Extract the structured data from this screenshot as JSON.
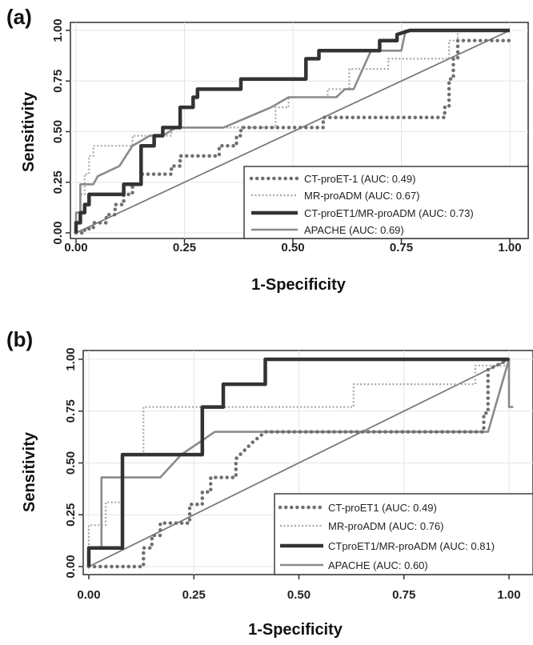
{
  "chart_data": [
    {
      "type": "line",
      "panel_label": "(a)",
      "title": "",
      "xlabel": "1-Specificity",
      "ylabel": "Sensitivity",
      "xlim": [
        0,
        1
      ],
      "ylim": [
        0,
        1
      ],
      "x_ticks": [
        "0.00",
        "0.25",
        "0.50",
        "0.75",
        "1.00"
      ],
      "y_ticks": [
        "0.00",
        "0.25",
        "0.50",
        "0.75",
        "1.00"
      ],
      "grid": true,
      "legend_position": "bottom-right",
      "reference_line": {
        "from": [
          0,
          0
        ],
        "to": [
          1,
          1
        ]
      },
      "series": [
        {
          "name": "CT-proET-1 (AUC: 0.49)",
          "style": "dotted-thick",
          "color": "#707070",
          "points": [
            [
              0,
              0
            ],
            [
              0.02,
              0
            ],
            [
              0.02,
              0.02
            ],
            [
              0.04,
              0.02
            ],
            [
              0.04,
              0.05
            ],
            [
              0.07,
              0.05
            ],
            [
              0.07,
              0.09
            ],
            [
              0.09,
              0.09
            ],
            [
              0.09,
              0.14
            ],
            [
              0.11,
              0.14
            ],
            [
              0.11,
              0.19
            ],
            [
              0.13,
              0.19
            ],
            [
              0.13,
              0.24
            ],
            [
              0.15,
              0.24
            ],
            [
              0.15,
              0.29
            ],
            [
              0.22,
              0.29
            ],
            [
              0.22,
              0.33
            ],
            [
              0.24,
              0.33
            ],
            [
              0.24,
              0.38
            ],
            [
              0.33,
              0.38
            ],
            [
              0.33,
              0.43
            ],
            [
              0.37,
              0.43
            ],
            [
              0.37,
              0.48
            ],
            [
              0.38,
              0.48
            ],
            [
              0.38,
              0.52
            ],
            [
              0.57,
              0.52
            ],
            [
              0.57,
              0.57
            ],
            [
              0.85,
              0.57
            ],
            [
              0.85,
              0.62
            ],
            [
              0.86,
              0.62
            ],
            [
              0.86,
              0.76
            ],
            [
              0.87,
              0.76
            ],
            [
              0.87,
              0.86
            ],
            [
              0.88,
              0.86
            ],
            [
              0.88,
              0.95
            ],
            [
              1,
              0.95
            ]
          ]
        },
        {
          "name": "MR-proADM (AUC: 0.67)",
          "style": "dotted-thin",
          "color": "#a8a8a8",
          "points": [
            [
              0,
              0
            ],
            [
              0,
              0.05
            ],
            [
              0.01,
              0.05
            ],
            [
              0.01,
              0.19
            ],
            [
              0.02,
              0.19
            ],
            [
              0.02,
              0.29
            ],
            [
              0.03,
              0.29
            ],
            [
              0.03,
              0.38
            ],
            [
              0.04,
              0.38
            ],
            [
              0.04,
              0.43
            ],
            [
              0.13,
              0.43
            ],
            [
              0.13,
              0.48
            ],
            [
              0.22,
              0.48
            ],
            [
              0.22,
              0.52
            ],
            [
              0.46,
              0.52
            ],
            [
              0.46,
              0.62
            ],
            [
              0.49,
              0.62
            ],
            [
              0.49,
              0.67
            ],
            [
              0.58,
              0.67
            ],
            [
              0.58,
              0.71
            ],
            [
              0.63,
              0.71
            ],
            [
              0.63,
              0.81
            ],
            [
              0.72,
              0.81
            ],
            [
              0.72,
              0.86
            ],
            [
              0.86,
              0.86
            ],
            [
              0.86,
              0.95
            ],
            [
              0.88,
              0.95
            ],
            [
              0.88,
              1
            ],
            [
              1,
              1
            ]
          ]
        },
        {
          "name": "CT-proET1/MR-proADM (AUC: 0.73)",
          "style": "solid-thick",
          "color": "#333333",
          "points": [
            [
              0,
              0
            ],
            [
              0,
              0.05
            ],
            [
              0.01,
              0.05
            ],
            [
              0.01,
              0.1
            ],
            [
              0.02,
              0.1
            ],
            [
              0.02,
              0.14
            ],
            [
              0.03,
              0.14
            ],
            [
              0.03,
              0.19
            ],
            [
              0.11,
              0.19
            ],
            [
              0.11,
              0.24
            ],
            [
              0.15,
              0.24
            ],
            [
              0.15,
              0.43
            ],
            [
              0.18,
              0.43
            ],
            [
              0.18,
              0.48
            ],
            [
              0.2,
              0.48
            ],
            [
              0.2,
              0.52
            ],
            [
              0.24,
              0.52
            ],
            [
              0.24,
              0.62
            ],
            [
              0.27,
              0.62
            ],
            [
              0.27,
              0.67
            ],
            [
              0.28,
              0.67
            ],
            [
              0.28,
              0.71
            ],
            [
              0.38,
              0.71
            ],
            [
              0.38,
              0.76
            ],
            [
              0.53,
              0.76
            ],
            [
              0.53,
              0.86
            ],
            [
              0.56,
              0.86
            ],
            [
              0.56,
              0.9
            ],
            [
              0.7,
              0.9
            ],
            [
              0.7,
              0.95
            ],
            [
              0.74,
              0.95
            ],
            [
              0.74,
              0.98
            ],
            [
              0.77,
              1
            ],
            [
              1,
              1
            ]
          ]
        },
        {
          "name": "APACHE (AUC: 0.69)",
          "style": "solid-medium",
          "color": "#8a8a8a",
          "points": [
            [
              0,
              0
            ],
            [
              0,
              0.1
            ],
            [
              0.01,
              0.1
            ],
            [
              0.01,
              0.24
            ],
            [
              0.04,
              0.24
            ],
            [
              0.05,
              0.28
            ],
            [
              0.1,
              0.33
            ],
            [
              0.13,
              0.43
            ],
            [
              0.17,
              0.48
            ],
            [
              0.2,
              0.48
            ],
            [
              0.23,
              0.52
            ],
            [
              0.34,
              0.52
            ],
            [
              0.45,
              0.62
            ],
            [
              0.49,
              0.67
            ],
            [
              0.6,
              0.67
            ],
            [
              0.62,
              0.71
            ],
            [
              0.64,
              0.71
            ],
            [
              0.68,
              0.9
            ],
            [
              0.75,
              0.9
            ],
            [
              0.76,
              1
            ],
            [
              1,
              1
            ]
          ]
        }
      ]
    },
    {
      "type": "line",
      "panel_label": "(b)",
      "title": "",
      "xlabel": "1-Specificity",
      "ylabel": "Sensitivity",
      "xlim": [
        0,
        1
      ],
      "ylim": [
        0,
        1
      ],
      "x_ticks": [
        "0.00",
        "0.25",
        "0.50",
        "0.75",
        "1.00"
      ],
      "y_ticks": [
        "0.00",
        "0.25",
        "0.50",
        "0.75",
        "1.00"
      ],
      "grid": true,
      "legend_position": "bottom-right",
      "reference_line": {
        "from": [
          0,
          0
        ],
        "to": [
          1,
          1
        ]
      },
      "series": [
        {
          "name": "CT-proET1 (AUC: 0.49)",
          "style": "dotted-thick",
          "color": "#707070",
          "points": [
            [
              0,
              0
            ],
            [
              0.13,
              0
            ],
            [
              0.13,
              0.09
            ],
            [
              0.15,
              0.09
            ],
            [
              0.15,
              0.15
            ],
            [
              0.17,
              0.15
            ],
            [
              0.17,
              0.21
            ],
            [
              0.24,
              0.21
            ],
            [
              0.24,
              0.3
            ],
            [
              0.27,
              0.3
            ],
            [
              0.27,
              0.36
            ],
            [
              0.29,
              0.36
            ],
            [
              0.29,
              0.43
            ],
            [
              0.35,
              0.43
            ],
            [
              0.35,
              0.52
            ],
            [
              0.39,
              0.6
            ],
            [
              0.42,
              0.65
            ],
            [
              0.94,
              0.65
            ],
            [
              0.94,
              0.74
            ],
            [
              0.95,
              0.74
            ],
            [
              0.95,
              0.95
            ],
            [
              1,
              1
            ]
          ]
        },
        {
          "name": "MR-proADM (AUC: 0.76)",
          "style": "dotted-thin",
          "color": "#a8a8a8",
          "points": [
            [
              0,
              0
            ],
            [
              0,
              0.2
            ],
            [
              0.04,
              0.2
            ],
            [
              0.04,
              0.31
            ],
            [
              0.08,
              0.31
            ],
            [
              0.08,
              0.54
            ],
            [
              0.13,
              0.54
            ],
            [
              0.13,
              0.77
            ],
            [
              0.63,
              0.77
            ],
            [
              0.63,
              0.88
            ],
            [
              0.92,
              0.88
            ],
            [
              0.92,
              0.97
            ],
            [
              1,
              0.97
            ]
          ]
        },
        {
          "name": "CTproET1/MR-proADM (AUC: 0.81)",
          "style": "solid-thick",
          "color": "#333333",
          "points": [
            [
              0,
              0
            ],
            [
              0,
              0.09
            ],
            [
              0.08,
              0.09
            ],
            [
              0.08,
              0.54
            ],
            [
              0.27,
              0.54
            ],
            [
              0.27,
              0.77
            ],
            [
              0.32,
              0.77
            ],
            [
              0.32,
              0.88
            ],
            [
              0.42,
              0.88
            ],
            [
              0.42,
              1
            ],
            [
              1,
              1
            ]
          ]
        },
        {
          "name": "APACHE  (AUC: 0.60)",
          "style": "solid-medium",
          "color": "#8a8a8a",
          "points": [
            [
              0,
              0
            ],
            [
              0,
              0.09
            ],
            [
              0.03,
              0.09
            ],
            [
              0.03,
              0.43
            ],
            [
              0.17,
              0.43
            ],
            [
              0.22,
              0.54
            ],
            [
              0.3,
              0.65
            ],
            [
              0.95,
              0.65
            ],
            [
              1,
              1
            ],
            [
              1,
              0.77
            ],
            [
              1.01,
              0.77
            ]
          ]
        }
      ]
    }
  ]
}
